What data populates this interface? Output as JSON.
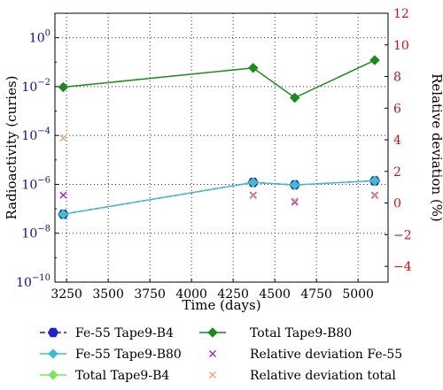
{
  "chart_data": {
    "type": "line",
    "xlabel": "Time (days)",
    "ylabel_left": "Radioactivity (curies)",
    "ylabel_right": "Relative deviation (%)",
    "x_ticks": [
      3250,
      3500,
      3750,
      4000,
      4250,
      4500,
      4750,
      5000
    ],
    "xlim": [
      3180,
      5180
    ],
    "ylim_left_log10": [
      -10,
      1
    ],
    "y_left_tick_exponents": [
      -10,
      -8,
      -6,
      -4,
      -2,
      0
    ],
    "y_left_tick_base": "10",
    "y_left_scale": "log",
    "ylim_right": [
      -5,
      12
    ],
    "y_right_ticks": [
      -4,
      -2,
      0,
      2,
      4,
      6,
      8,
      10,
      12
    ],
    "grid": true,
    "legend_position": "bottom",
    "series": [
      {
        "name": "Fe-55 Tape9-B4",
        "axis": "left",
        "color": "#1f1fd6",
        "marker": "hexagon",
        "dash": true,
        "x": [
          3230,
          4370,
          4620,
          5100
        ],
        "y": [
          6e-08,
          1.2e-06,
          9.5e-07,
          1.4e-06
        ]
      },
      {
        "name": "Fe-55 Tape9-B80",
        "axis": "left",
        "color": "#3cbfc9",
        "marker": "diamond",
        "dash": false,
        "x": [
          3230,
          4370,
          4620,
          5100
        ],
        "y": [
          6e-08,
          1.2e-06,
          9.5e-07,
          1.4e-06
        ]
      },
      {
        "name": "Total Tape9-B4",
        "axis": "left",
        "color": "#7de35a",
        "marker": "diamond",
        "dash": false,
        "x": [
          3230,
          4370,
          4620,
          5100
        ],
        "y": [
          0.0095,
          0.058,
          0.0035,
          0.12
        ]
      },
      {
        "name": "Total Tape9-B80",
        "axis": "left",
        "color": "#1a8a1a",
        "marker": "diamond",
        "dash": false,
        "x": [
          3230,
          4370,
          4620,
          5100
        ],
        "y": [
          0.0095,
          0.058,
          0.0035,
          0.12
        ]
      },
      {
        "name": "Relative deviation Fe-55",
        "axis": "right",
        "color": "#a020c0",
        "marker": "x",
        "dash": false,
        "noline": true,
        "x": [
          3230,
          4370,
          4620,
          5100
        ],
        "y": [
          0.5,
          0.5,
          0.05,
          0.5
        ]
      },
      {
        "name": "Relative deviation total",
        "axis": "right",
        "color": "#f0a070",
        "marker": "x",
        "dash": false,
        "noline": true,
        "x": [
          3230,
          4370,
          4620,
          5100
        ],
        "y": [
          4.1,
          0.45,
          0.15,
          0.45
        ]
      }
    ],
    "colors": {
      "left_axis": "#1010a0",
      "right_axis": "#d01010"
    }
  }
}
